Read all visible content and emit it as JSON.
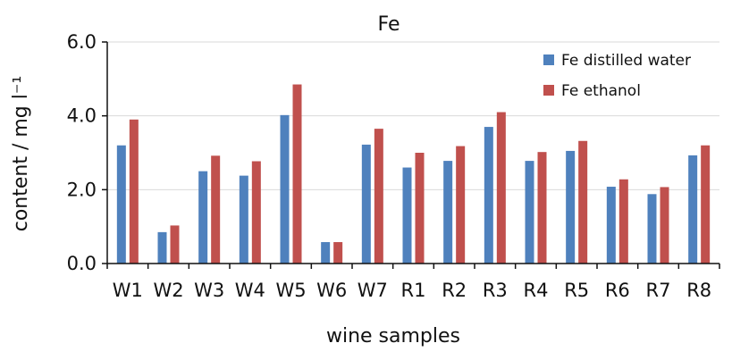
{
  "chart_data": {
    "type": "bar",
    "title": "Fe",
    "xlabel": "wine samples",
    "ylabel": "content / mg l⁻¹",
    "ylim": [
      0,
      6
    ],
    "yticks": [
      "0.0",
      "2.0",
      "4.0",
      "6.0"
    ],
    "grid": true,
    "legend_position": "top-right",
    "categories": [
      "W1",
      "W2",
      "W3",
      "W4",
      "W5",
      "W6",
      "W7",
      "R1",
      "R2",
      "R3",
      "R4",
      "R5",
      "R6",
      "R7",
      "R8"
    ],
    "series": [
      {
        "name": "Fe distilled water",
        "color": "#4f81bd",
        "values": [
          3.2,
          0.85,
          2.5,
          2.38,
          4.02,
          0.58,
          3.22,
          2.6,
          2.78,
          3.7,
          2.78,
          3.05,
          2.08,
          1.88,
          2.93
        ]
      },
      {
        "name": "Fe ethanol",
        "color": "#c0504d",
        "values": [
          3.9,
          1.03,
          2.92,
          2.77,
          4.85,
          0.58,
          3.65,
          3.0,
          3.18,
          4.1,
          3.02,
          3.32,
          2.28,
          2.07,
          3.2
        ]
      }
    ]
  }
}
